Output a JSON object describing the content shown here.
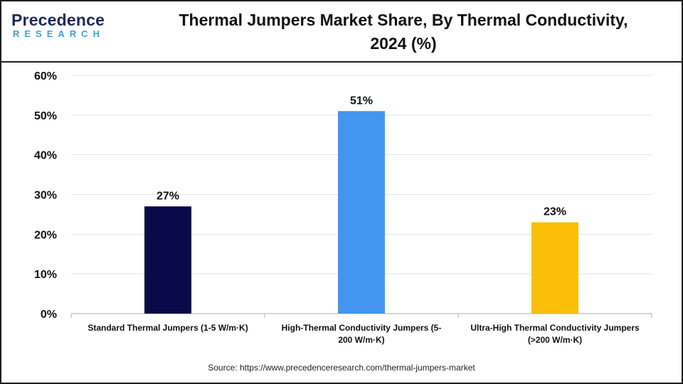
{
  "logo": {
    "name_top": "Precedence",
    "name_bottom": "RESEARCH"
  },
  "chart_data": {
    "type": "bar",
    "title": "Thermal Jumpers Market Share, By Thermal Conductivity, 2024 (%)",
    "title_lines": [
      "Thermal Jumpers Market Share, By Thermal Conductivity,",
      "2024 (%)"
    ],
    "categories": [
      "Standard Thermal Jumpers (1-5 W/m·K)",
      "High-Thermal Conductivity Jumpers (5-200 W/m·K)",
      "Ultra-High Thermal Conductivity Jumpers (>200 W/m·K)"
    ],
    "category_lines": [
      [
        "Standard Thermal Jumpers (1-5 W/m·K)"
      ],
      [
        "High-Thermal Conductivity Jumpers (5-",
        "200 W/m·K)"
      ],
      [
        "Ultra-High Thermal Conductivity Jumpers",
        "(>200 W/m·K)"
      ]
    ],
    "values": [
      27,
      51,
      23
    ],
    "data_labels": [
      "27%",
      "51%",
      "23%"
    ],
    "colors": [
      "#0a0a4a",
      "#4495f0",
      "#fbbf0a"
    ],
    "ylim": [
      0,
      60
    ],
    "yticks": [
      0,
      10,
      20,
      30,
      40,
      50,
      60
    ],
    "ytick_labels": [
      "0%",
      "10%",
      "20%",
      "30%",
      "40%",
      "50%",
      "60%"
    ],
    "grid": true,
    "xlabel": "",
    "ylabel": ""
  },
  "source": "Source: https://www.precedenceresearch.com/thermal-jumpers-market"
}
